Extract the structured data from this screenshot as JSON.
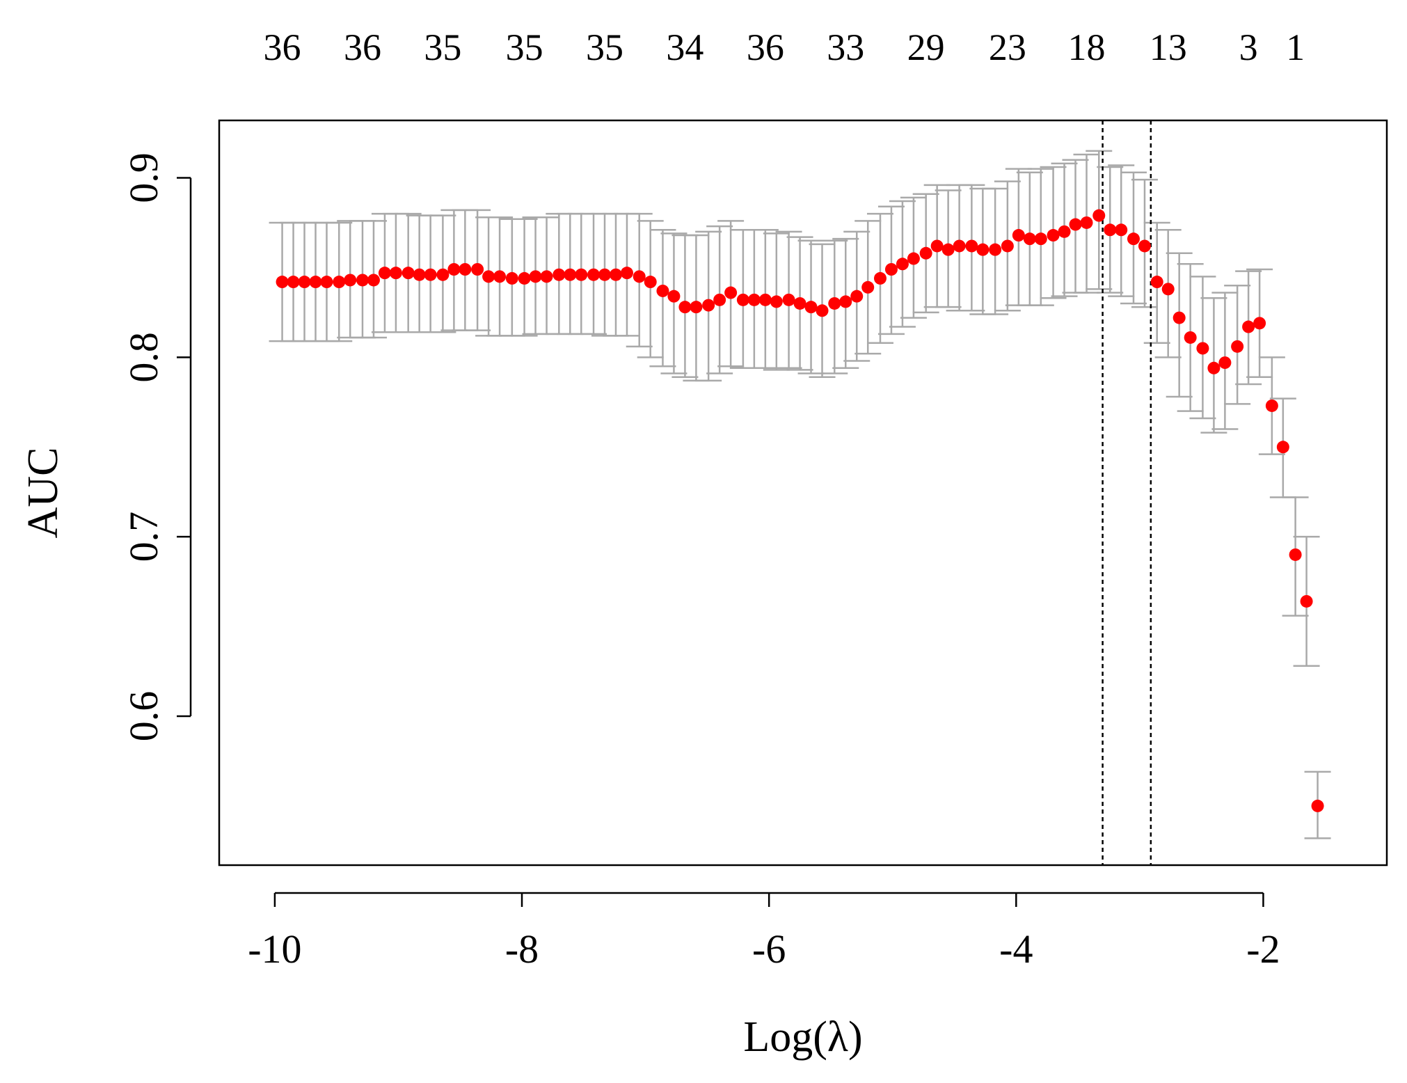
{
  "chart_data": {
    "type": "scatter",
    "title": "",
    "xlabel": "Log(λ)",
    "ylabel": "AUC",
    "xlim": [
      -10.45,
      -1.0
    ],
    "ylim": [
      0.517,
      0.932
    ],
    "grid": false,
    "legend": "none",
    "x_ticks": [
      -10,
      -8,
      -6,
      -4,
      -2
    ],
    "x_tick_labels": [
      "-10",
      "-8",
      "-6",
      "-4",
      "-2"
    ],
    "y_ticks": [
      0.6,
      0.7,
      0.8,
      0.9
    ],
    "y_tick_labels": [
      "0.6",
      "0.7",
      "0.8",
      "0.9"
    ],
    "top_axis": {
      "tick_values": [
        -9.94,
        -9.29,
        -8.64,
        -7.98,
        -7.33,
        -6.68,
        -6.03,
        -5.38,
        -4.73,
        -4.07,
        -3.43,
        -2.77,
        -2.12,
        -1.74
      ],
      "tick_labels": [
        "36",
        "36",
        "35",
        "35",
        "35",
        "34",
        "36",
        "33",
        "29",
        "23",
        "18",
        "13",
        "3",
        "1"
      ]
    },
    "vlines": [
      -3.3,
      -2.91
    ],
    "colors": {
      "point": "#ff0000",
      "errorbar": "#a9a9a9",
      "vline": "#000000"
    },
    "series": [
      {
        "x": [
          -9.94,
          -9.85,
          -9.76,
          -9.67,
          -9.58,
          -9.48,
          -9.39,
          -9.29,
          -9.2,
          -9.11,
          -9.02,
          -8.92,
          -8.83,
          -8.74,
          -8.64,
          -8.55,
          -8.46,
          -8.36,
          -8.27,
          -8.18,
          -8.08,
          -7.98,
          -7.89,
          -7.8,
          -7.7,
          -7.61,
          -7.52,
          -7.42,
          -7.33,
          -7.24,
          -7.15,
          -7.05,
          -6.96,
          -6.86,
          -6.77,
          -6.68,
          -6.59,
          -6.49,
          -6.4,
          -6.31,
          -6.21,
          -6.12,
          -6.03,
          -5.94,
          -5.84,
          -5.75,
          -5.66,
          -5.57,
          -5.47,
          -5.38,
          -5.29,
          -5.2,
          -5.1,
          -5.01,
          -4.92,
          -4.83,
          -4.73,
          -4.64,
          -4.55,
          -4.46,
          -4.36,
          -4.27,
          -4.17,
          -4.07,
          -3.98,
          -3.89,
          -3.8,
          -3.7,
          -3.61,
          -3.52,
          -3.43,
          -3.33,
          -3.24,
          -3.15,
          -3.05,
          -2.96,
          -2.86,
          -2.77,
          -2.68,
          -2.59,
          -2.49,
          -2.4,
          -2.31,
          -2.21,
          -2.12,
          -2.03,
          -1.93,
          -1.84,
          -1.74,
          -1.65,
          -1.56
        ],
        "y": [
          0.842,
          0.842,
          0.842,
          0.842,
          0.842,
          0.842,
          0.843,
          0.843,
          0.843,
          0.847,
          0.847,
          0.847,
          0.846,
          0.846,
          0.846,
          0.849,
          0.849,
          0.849,
          0.845,
          0.845,
          0.844,
          0.844,
          0.845,
          0.845,
          0.846,
          0.846,
          0.846,
          0.846,
          0.846,
          0.846,
          0.847,
          0.845,
          0.842,
          0.837,
          0.834,
          0.828,
          0.828,
          0.829,
          0.832,
          0.836,
          0.832,
          0.832,
          0.832,
          0.831,
          0.832,
          0.83,
          0.828,
          0.826,
          0.83,
          0.831,
          0.834,
          0.839,
          0.844,
          0.849,
          0.852,
          0.855,
          0.858,
          0.862,
          0.86,
          0.862,
          0.862,
          0.86,
          0.86,
          0.862,
          0.868,
          0.866,
          0.866,
          0.868,
          0.87,
          0.874,
          0.875,
          0.879,
          0.871,
          0.871,
          0.866,
          0.862,
          0.842,
          0.838,
          0.822,
          0.811,
          0.805,
          0.794,
          0.797,
          0.806,
          0.817,
          0.819,
          0.773,
          0.75,
          0.69,
          0.664,
          0.55
        ],
        "lower": [
          0.809,
          0.809,
          0.809,
          0.809,
          0.809,
          0.809,
          0.811,
          0.811,
          0.811,
          0.814,
          0.814,
          0.814,
          0.814,
          0.814,
          0.814,
          0.815,
          0.815,
          0.815,
          0.812,
          0.812,
          0.812,
          0.812,
          0.813,
          0.813,
          0.813,
          0.813,
          0.813,
          0.813,
          0.812,
          0.812,
          0.812,
          0.806,
          0.8,
          0.795,
          0.791,
          0.789,
          0.787,
          0.787,
          0.791,
          0.795,
          0.794,
          0.794,
          0.794,
          0.793,
          0.794,
          0.793,
          0.791,
          0.789,
          0.791,
          0.794,
          0.798,
          0.802,
          0.808,
          0.813,
          0.817,
          0.822,
          0.825,
          0.828,
          0.828,
          0.826,
          0.826,
          0.824,
          0.824,
          0.826,
          0.829,
          0.829,
          0.829,
          0.833,
          0.834,
          0.836,
          0.836,
          0.838,
          0.836,
          0.834,
          0.83,
          0.828,
          0.808,
          0.8,
          0.778,
          0.77,
          0.766,
          0.758,
          0.76,
          0.774,
          0.785,
          0.789,
          0.746,
          0.722,
          0.656,
          0.628,
          0.532
        ],
        "upper": [
          0.875,
          0.875,
          0.875,
          0.875,
          0.875,
          0.875,
          0.876,
          0.876,
          0.876,
          0.88,
          0.88,
          0.88,
          0.879,
          0.879,
          0.879,
          0.882,
          0.882,
          0.882,
          0.878,
          0.878,
          0.877,
          0.877,
          0.878,
          0.878,
          0.88,
          0.88,
          0.88,
          0.88,
          0.88,
          0.88,
          0.88,
          0.88,
          0.876,
          0.871,
          0.869,
          0.868,
          0.868,
          0.87,
          0.873,
          0.876,
          0.871,
          0.871,
          0.871,
          0.869,
          0.87,
          0.867,
          0.865,
          0.863,
          0.865,
          0.866,
          0.87,
          0.876,
          0.88,
          0.884,
          0.887,
          0.889,
          0.891,
          0.896,
          0.893,
          0.896,
          0.896,
          0.894,
          0.894,
          0.898,
          0.905,
          0.903,
          0.905,
          0.906,
          0.908,
          0.91,
          0.913,
          0.915,
          0.906,
          0.907,
          0.903,
          0.899,
          0.875,
          0.871,
          0.858,
          0.852,
          0.845,
          0.833,
          0.836,
          0.84,
          0.848,
          0.849,
          0.8,
          0.777,
          0.722,
          0.7,
          0.569
        ]
      }
    ]
  }
}
